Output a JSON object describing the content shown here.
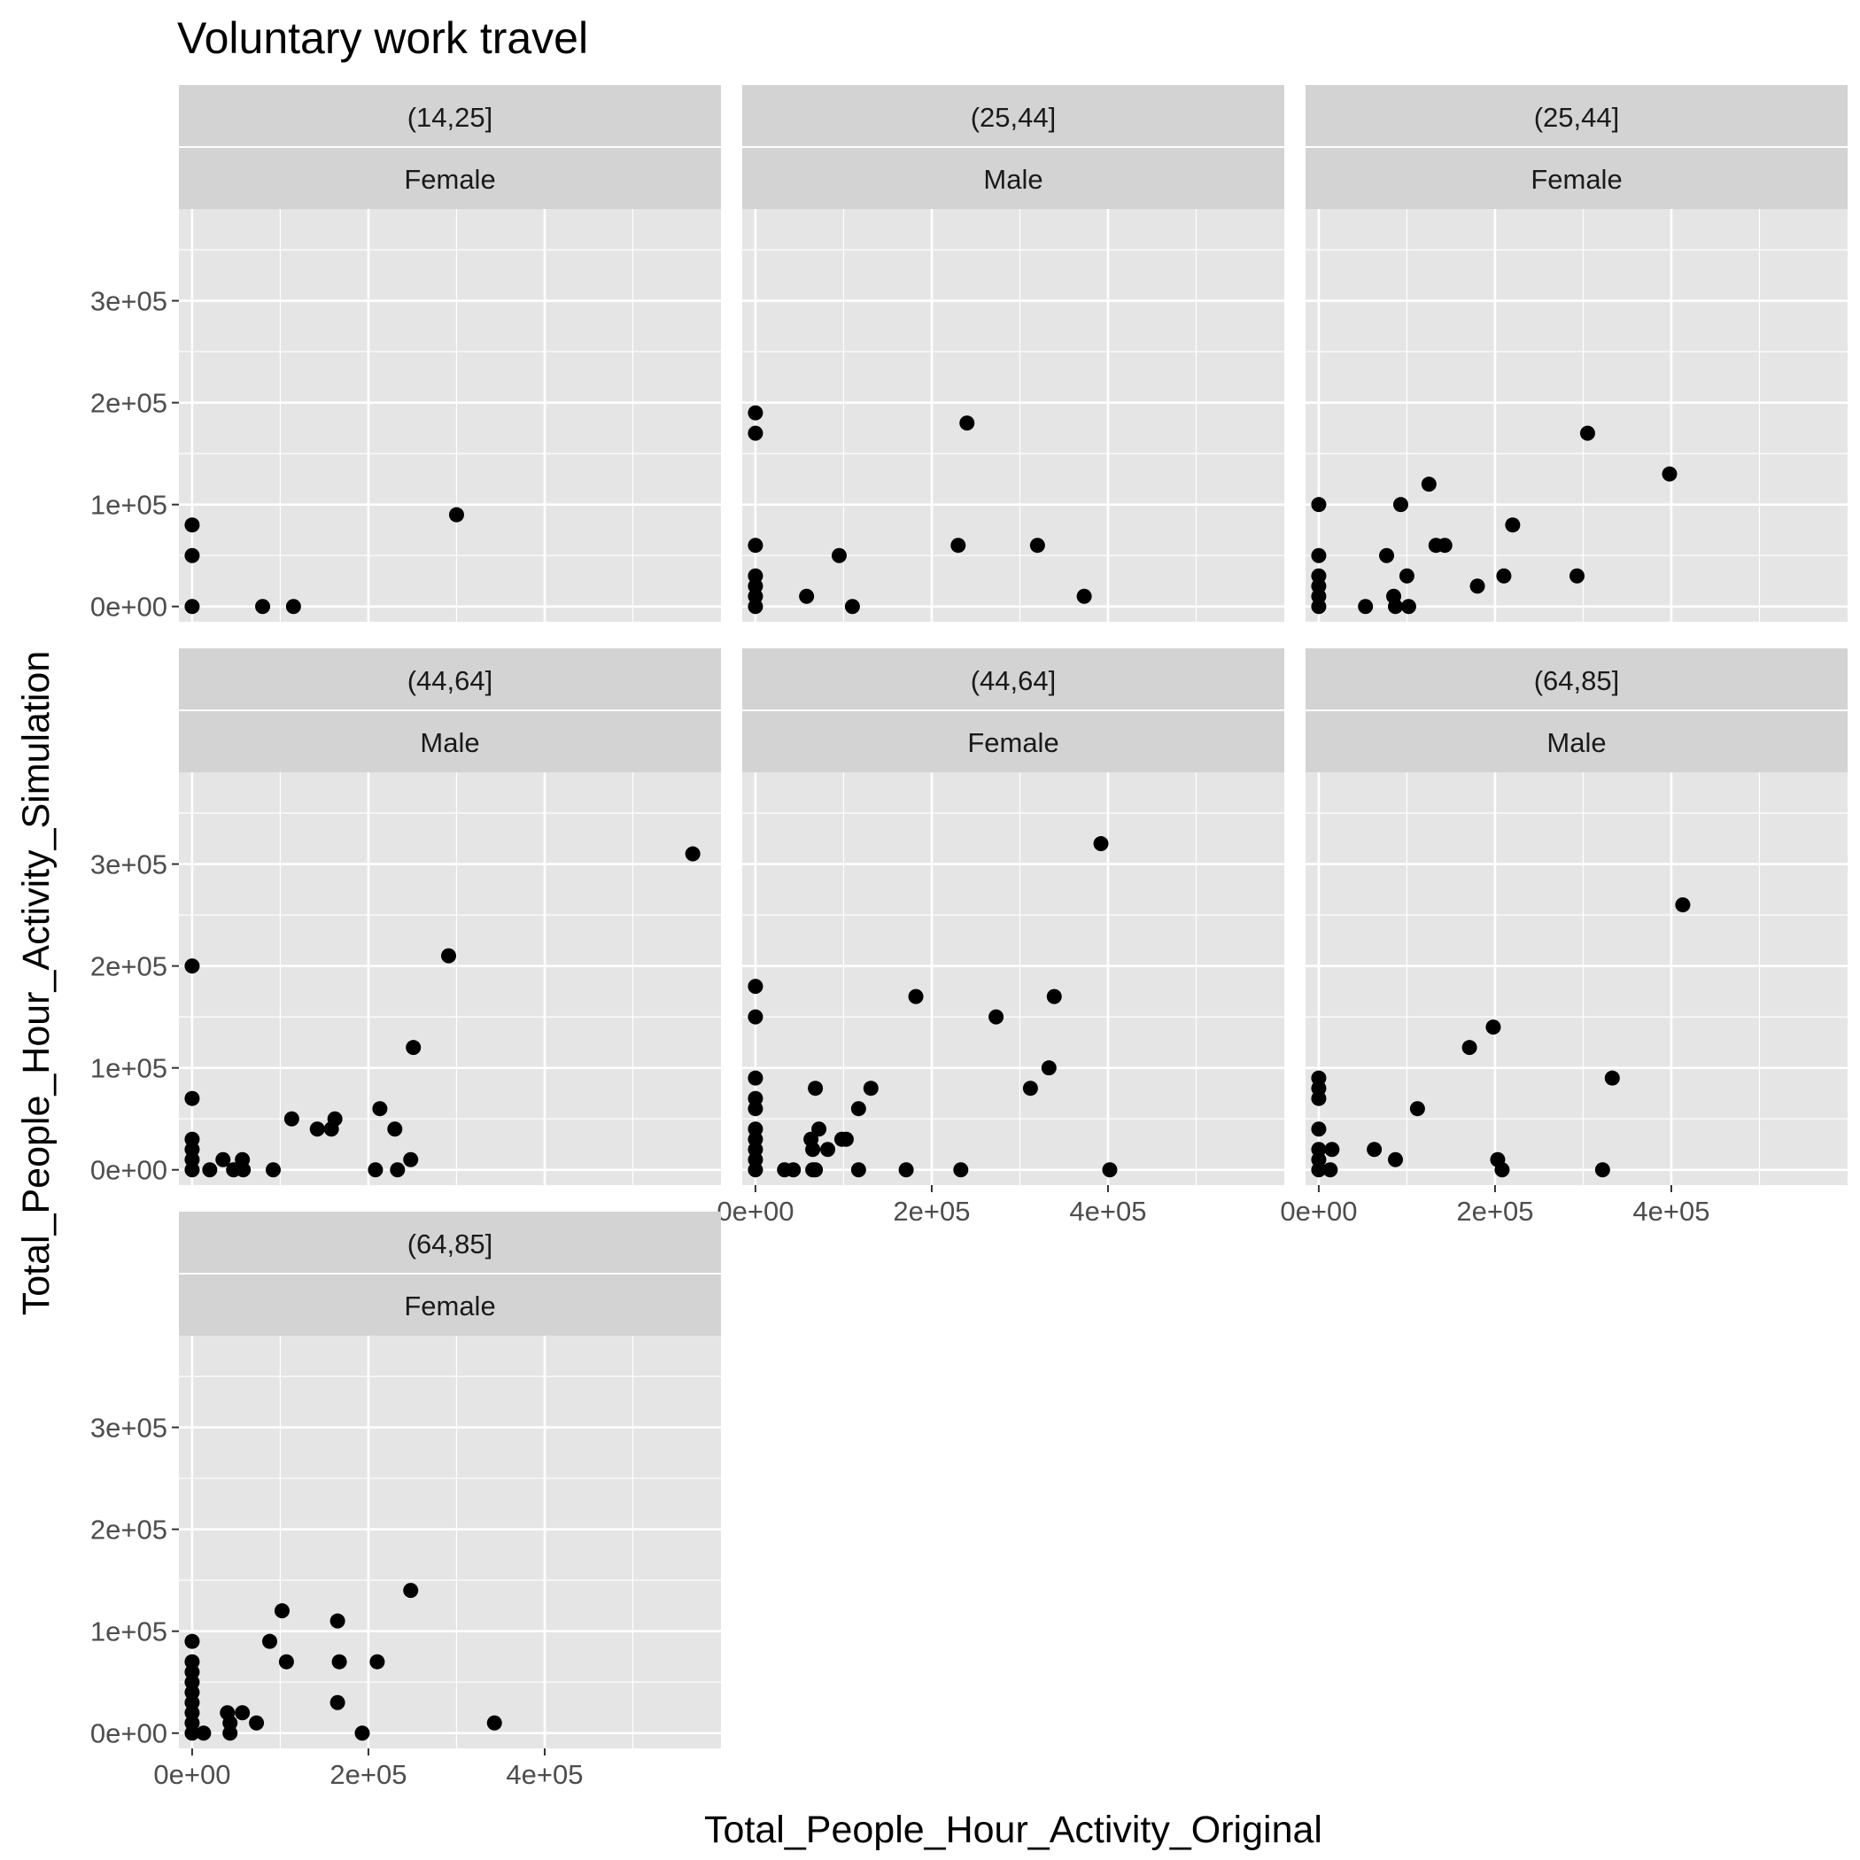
{
  "chart_data": {
    "type": "scatter",
    "title": "Voluntary work travel",
    "xlabel": "Total_People_Hour_Activity_Original",
    "ylabel": "Total_People_Hour_Activity_Simulation",
    "xlim": [
      -15000,
      600000
    ],
    "ylim": [
      -15000,
      390000
    ],
    "x_ticks": [
      0,
      200000,
      400000
    ],
    "x_tick_labels": [
      "0e+00",
      "2e+05",
      "4e+05"
    ],
    "y_ticks": [
      0,
      100000,
      200000,
      300000
    ],
    "y_tick_labels": [
      "0e+00",
      "1e+05",
      "2e+05",
      "3e+05"
    ],
    "grid": true,
    "marker_color": "#000000",
    "panel_background": "#e5e5e5",
    "strip_background": "#d3d3d3",
    "panels": [
      {
        "age_group": "(14,25]",
        "sex": "Female",
        "points": [
          [
            0,
            80000
          ],
          [
            0,
            50000
          ],
          [
            0,
            0
          ],
          [
            80000,
            0
          ],
          [
            115000,
            0
          ],
          [
            300000,
            90000
          ]
        ]
      },
      {
        "age_group": "(25,44]",
        "sex": "Male",
        "points": [
          [
            0,
            190000
          ],
          [
            0,
            170000
          ],
          [
            0,
            60000
          ],
          [
            0,
            30000
          ],
          [
            0,
            20000
          ],
          [
            0,
            10000
          ],
          [
            0,
            0
          ],
          [
            58000,
            10000
          ],
          [
            95000,
            50000
          ],
          [
            110000,
            0
          ],
          [
            230000,
            60000
          ],
          [
            240000,
            180000
          ],
          [
            320000,
            60000
          ],
          [
            373000,
            10000
          ]
        ]
      },
      {
        "age_group": "(25,44]",
        "sex": "Female",
        "points": [
          [
            0,
            100000
          ],
          [
            0,
            50000
          ],
          [
            0,
            30000
          ],
          [
            0,
            20000
          ],
          [
            0,
            10000
          ],
          [
            0,
            0
          ],
          [
            53000,
            0
          ],
          [
            77000,
            50000
          ],
          [
            85000,
            10000
          ],
          [
            87000,
            0
          ],
          [
            93000,
            100000
          ],
          [
            100000,
            30000
          ],
          [
            102000,
            0
          ],
          [
            125000,
            120000
          ],
          [
            133000,
            60000
          ],
          [
            143000,
            60000
          ],
          [
            180000,
            20000
          ],
          [
            220000,
            80000
          ],
          [
            210000,
            30000
          ],
          [
            293000,
            30000
          ],
          [
            305000,
            170000
          ],
          [
            398000,
            130000
          ]
        ]
      },
      {
        "age_group": "(44,64]",
        "sex": "Male",
        "points": [
          [
            0,
            200000
          ],
          [
            0,
            70000
          ],
          [
            0,
            30000
          ],
          [
            0,
            20000
          ],
          [
            0,
            10000
          ],
          [
            0,
            0
          ],
          [
            20000,
            0
          ],
          [
            35000,
            10000
          ],
          [
            47000,
            0
          ],
          [
            57000,
            10000
          ],
          [
            58000,
            0
          ],
          [
            92000,
            0
          ],
          [
            113000,
            50000
          ],
          [
            142000,
            40000
          ],
          [
            158000,
            40000
          ],
          [
            162000,
            50000
          ],
          [
            208000,
            0
          ],
          [
            213000,
            60000
          ],
          [
            230000,
            40000
          ],
          [
            233000,
            0
          ],
          [
            248000,
            10000
          ],
          [
            251000,
            120000
          ],
          [
            291000,
            210000
          ],
          [
            568000,
            310000
          ]
        ]
      },
      {
        "age_group": "(44,64]",
        "sex": "Female",
        "points": [
          [
            0,
            180000
          ],
          [
            0,
            150000
          ],
          [
            0,
            90000
          ],
          [
            0,
            70000
          ],
          [
            0,
            60000
          ],
          [
            0,
            40000
          ],
          [
            0,
            30000
          ],
          [
            0,
            20000
          ],
          [
            0,
            10000
          ],
          [
            0,
            0
          ],
          [
            33000,
            0
          ],
          [
            43000,
            0
          ],
          [
            63000,
            30000
          ],
          [
            65000,
            20000
          ],
          [
            65000,
            0
          ],
          [
            68000,
            0
          ],
          [
            68000,
            80000
          ],
          [
            72000,
            40000
          ],
          [
            82000,
            20000
          ],
          [
            98000,
            30000
          ],
          [
            103000,
            30000
          ],
          [
            117000,
            60000
          ],
          [
            117000,
            0
          ],
          [
            131000,
            80000
          ],
          [
            171000,
            0
          ],
          [
            182000,
            170000
          ],
          [
            233000,
            0
          ],
          [
            273000,
            150000
          ],
          [
            312000,
            80000
          ],
          [
            333000,
            100000
          ],
          [
            339000,
            170000
          ],
          [
            392000,
            320000
          ],
          [
            402000,
            0
          ]
        ]
      },
      {
        "age_group": "(64,85]",
        "sex": "Male",
        "points": [
          [
            0,
            90000
          ],
          [
            0,
            80000
          ],
          [
            0,
            70000
          ],
          [
            0,
            40000
          ],
          [
            0,
            20000
          ],
          [
            0,
            10000
          ],
          [
            0,
            0
          ],
          [
            13000,
            0
          ],
          [
            15000,
            20000
          ],
          [
            63000,
            20000
          ],
          [
            87000,
            10000
          ],
          [
            112000,
            60000
          ],
          [
            171000,
            120000
          ],
          [
            198000,
            140000
          ],
          [
            203000,
            10000
          ],
          [
            208000,
            0
          ],
          [
            322000,
            0
          ],
          [
            333000,
            90000
          ],
          [
            413000,
            260000
          ]
        ]
      },
      {
        "age_group": "(64,85]",
        "sex": "Female",
        "points": [
          [
            0,
            90000
          ],
          [
            0,
            70000
          ],
          [
            0,
            60000
          ],
          [
            0,
            50000
          ],
          [
            0,
            40000
          ],
          [
            0,
            30000
          ],
          [
            0,
            20000
          ],
          [
            0,
            10000
          ],
          [
            0,
            0
          ],
          [
            13000,
            0
          ],
          [
            40000,
            20000
          ],
          [
            43000,
            10000
          ],
          [
            43000,
            0
          ],
          [
            57000,
            20000
          ],
          [
            73000,
            10000
          ],
          [
            88000,
            90000
          ],
          [
            102000,
            120000
          ],
          [
            107000,
            70000
          ],
          [
            165000,
            110000
          ],
          [
            165000,
            30000
          ],
          [
            167000,
            70000
          ],
          [
            193000,
            0
          ],
          [
            210000,
            70000
          ],
          [
            248000,
            140000
          ],
          [
            343000,
            10000
          ]
        ]
      }
    ]
  }
}
